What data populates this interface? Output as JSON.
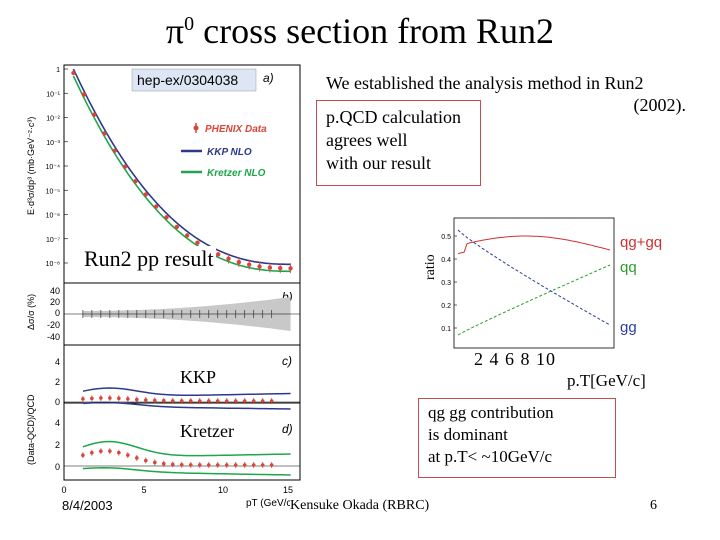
{
  "slide": {
    "title_symbol": "π",
    "title_superscript": "0",
    "title_rest": " cross section from Run2",
    "intro_line1": "We established the analysis method in Run2",
    "intro_line2": "(2002).",
    "pqcd_lines": [
      "p.QCD calculation",
      "agrees well",
      "with our result"
    ],
    "conclusion_lines": [
      "qg gg contribution",
      "is dominant",
      "at p.T< ~10GeV/c"
    ],
    "run2_label": "Run2 pp result",
    "kkp_label": "KKP",
    "kretzer_label": "Kretzer",
    "footer_date": "8/4/2003",
    "footer_author": "Kensuke Okada (RBRC)",
    "footer_page": "6"
  },
  "left_figure": {
    "ref_label": "hep-ex/0304038",
    "panel_a": "a)",
    "panel_b": "b)",
    "panel_c": "c)",
    "panel_d": "d)",
    "legend_data": "PHENIX Data",
    "legend_kkp": "KKP NLO",
    "legend_kretzer": "Kretzer NLO",
    "y_label_a": "E·d³σ/dp³ (mb·GeV⁻²·c³)",
    "y_label_b": "Δσ/σ (%)",
    "y_label_cd": "(Data-QCD)/QCD",
    "x_label": "pT (GeV/c)",
    "y_ticks_a": [
      "1",
      "10⁻¹",
      "10⁻²",
      "10⁻³",
      "10⁻⁴",
      "10⁻⁵",
      "10⁻⁶",
      "10⁻⁷",
      "10⁻⁸"
    ],
    "y_ticks_b": [
      "40",
      "20",
      "0",
      "-20",
      "-40"
    ],
    "y_ticks_c": [
      "4",
      "2",
      "0"
    ],
    "y_ticks_d": [
      "4",
      "2",
      "0"
    ],
    "x_ticks": [
      "0",
      "5",
      "10",
      "15"
    ],
    "colors": {
      "data": "#d9453a",
      "kkp": "#2d3a8c",
      "kretzer": "#1fa64a",
      "band": "#c8c8c8"
    }
  },
  "right_figure": {
    "y_label": "ratio",
    "x_label": "p.T[GeV/c]",
    "x_ticks_label": "2 4 6 8 10",
    "y_ticks": [
      "0.5",
      "0.4",
      "0.3",
      "0.2",
      "0.1"
    ],
    "series_qg": "qg+gq",
    "series_qq": "qq",
    "series_gg": "gg",
    "colors": {
      "qg": "#d03030",
      "qq": "#2aa02a",
      "gg": "#2a3fa0"
    }
  }
}
